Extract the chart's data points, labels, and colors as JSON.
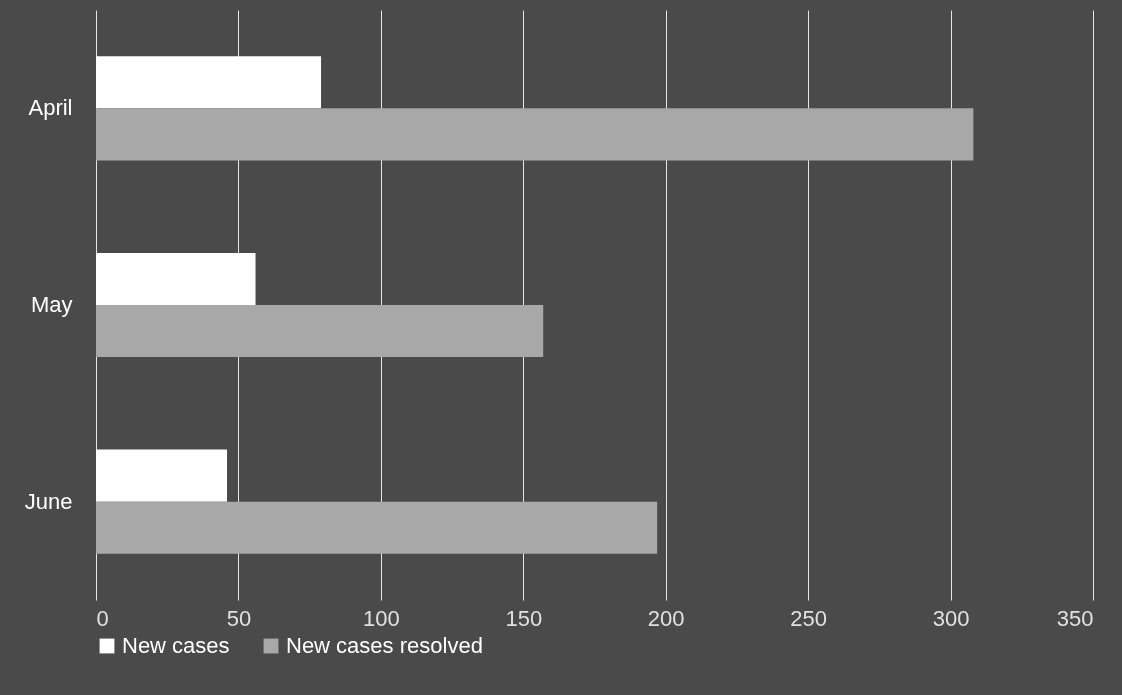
{
  "chart_data": {
    "type": "bar",
    "orientation": "horizontal",
    "categories": [
      "April",
      "May",
      "June"
    ],
    "series": [
      {
        "name": "New cases",
        "color": "#ffffff",
        "values": [
          79,
          56,
          46
        ]
      },
      {
        "name": "New cases resolved",
        "color": "#a8a8a8",
        "values": [
          308,
          157,
          197
        ]
      }
    ],
    "xlim": [
      0,
      350
    ],
    "xticks": [
      0,
      50,
      100,
      150,
      200,
      250,
      300,
      350
    ],
    "grid": "x",
    "legend": "bottom"
  }
}
